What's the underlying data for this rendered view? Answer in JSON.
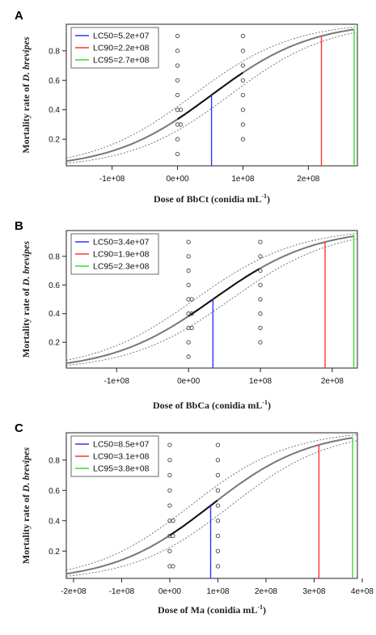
{
  "chart_data": [
    {
      "type": "line",
      "panel": "A",
      "xlabel": "Dose of BbCt",
      "xlabel_unit": "(conidia mL",
      "xlabel_sup": "-1",
      "xlabel_close": ")",
      "ylabel_prefix": "Mortality rate of ",
      "ylabel_species": "D. brevipes",
      "xlim": [
        -170000000,
        275000000
      ],
      "ylim": [
        0.02,
        0.98
      ],
      "xticks": [
        -100000000,
        0,
        100000000,
        200000000
      ],
      "xtick_labels": [
        "-1e+08",
        "0e+00",
        "1e+08",
        "2e+08"
      ],
      "yticks": [
        0.2,
        0.4,
        0.6,
        0.8
      ],
      "ytick_labels": [
        "0.2",
        "0.4",
        "0.6",
        "0.8"
      ],
      "fit": {
        "lc50": 52000000,
        "lc90": 220000000
      },
      "band": {
        "dx": 28000000
      },
      "legend": [
        {
          "label": "LC50=5.2e+07",
          "color": "#3333ff",
          "value": 52000000,
          "y": 0.5
        },
        {
          "label": "LC90=2.2e+08",
          "color": "#ff3333",
          "value": 220000000,
          "y": 0.9
        },
        {
          "label": "LC95=2.7e+08",
          "color": "#33dd33",
          "value": 270000000,
          "y": 0.95
        }
      ],
      "legend_placement": "top-left",
      "points": [
        {
          "x": 0,
          "y": [
            0.1,
            0.2,
            0.3,
            0.3,
            0.4,
            0.4,
            0.5,
            0.6,
            0.7,
            0.8,
            0.9
          ]
        },
        {
          "x": 100000000,
          "y": [
            0.2,
            0.3,
            0.4,
            0.5,
            0.6,
            0.7,
            0.8,
            0.9
          ]
        }
      ]
    },
    {
      "type": "line",
      "panel": "B",
      "xlabel": "Dose of BbCa",
      "xlabel_unit": "(conidia mL",
      "xlabel_sup": "-1",
      "xlabel_close": ")",
      "ylabel_prefix": "Mortality rate of ",
      "ylabel_species": "D. brevipes",
      "xlim": [
        -170000000,
        235000000
      ],
      "ylim": [
        0.02,
        0.98
      ],
      "xticks": [
        -100000000,
        0,
        100000000,
        200000000
      ],
      "xtick_labels": [
        "-1e+08",
        "0e+00",
        "1e+08",
        "2e+08"
      ],
      "yticks": [
        0.2,
        0.4,
        0.6,
        0.8
      ],
      "ytick_labels": [
        "0.2",
        "0.4",
        "0.6",
        "0.8"
      ],
      "fit": {
        "lc50": 34000000,
        "lc90": 190000000
      },
      "band": {
        "dx": 25000000
      },
      "legend": [
        {
          "label": "LC50=3.4e+07",
          "color": "#3333ff",
          "value": 34000000,
          "y": 0.5
        },
        {
          "label": "LC90=1.9e+08",
          "color": "#ff3333",
          "value": 190000000,
          "y": 0.9
        },
        {
          "label": "LC95=2.3e+08",
          "color": "#33dd33",
          "value": 230000000,
          "y": 0.95
        }
      ],
      "legend_placement": "top-left",
      "points": [
        {
          "x": 0,
          "y": [
            0.1,
            0.2,
            0.3,
            0.3,
            0.4,
            0.4,
            0.5,
            0.5,
            0.6,
            0.7,
            0.8,
            0.9
          ]
        },
        {
          "x": 100000000,
          "y": [
            0.2,
            0.3,
            0.4,
            0.5,
            0.6,
            0.7,
            0.8,
            0.9
          ]
        }
      ]
    },
    {
      "type": "line",
      "panel": "C",
      "xlabel": "Dose of Ma",
      "xlabel_unit": "(conidia mL",
      "xlabel_sup": "-1",
      "xlabel_close": ")",
      "ylabel_prefix": "Mortality rate of ",
      "ylabel_species": "D. brevipes",
      "xlim": [
        -215000000,
        390000000
      ],
      "ylim": [
        0.02,
        0.98
      ],
      "xticks": [
        -200000000,
        -100000000,
        0,
        100000000,
        200000000,
        300000000,
        400000000
      ],
      "xtick_labels": [
        "-2e+08",
        "-1e+08",
        "0e+00",
        "1e+08",
        "2e+08",
        "3e+08",
        "4e+08"
      ],
      "yticks": [
        0.2,
        0.4,
        0.6,
        0.8
      ],
      "ytick_labels": [
        "0.2",
        "0.4",
        "0.6",
        "0.8"
      ],
      "fit": {
        "lc50": 85000000,
        "lc90": 310000000
      },
      "band": {
        "dx": 42000000
      },
      "legend": [
        {
          "label": "LC50=8.5e+07",
          "color": "#3333ff",
          "value": 85000000,
          "y": 0.5
        },
        {
          "label": "LC90=3.1e+08",
          "color": "#ff3333",
          "value": 310000000,
          "y": 0.9
        },
        {
          "label": "LC95=3.8e+08",
          "color": "#33dd33",
          "value": 380000000,
          "y": 0.95
        }
      ],
      "legend_placement": "top-left",
      "points": [
        {
          "x": 0,
          "y": [
            0.1,
            0.1,
            0.2,
            0.3,
            0.3,
            0.4,
            0.4,
            0.5,
            0.6,
            0.7,
            0.8,
            0.9
          ]
        },
        {
          "x": 100000000,
          "y": [
            0.1,
            0.2,
            0.3,
            0.4,
            0.5,
            0.6,
            0.7,
            0.8,
            0.9
          ]
        }
      ]
    }
  ]
}
